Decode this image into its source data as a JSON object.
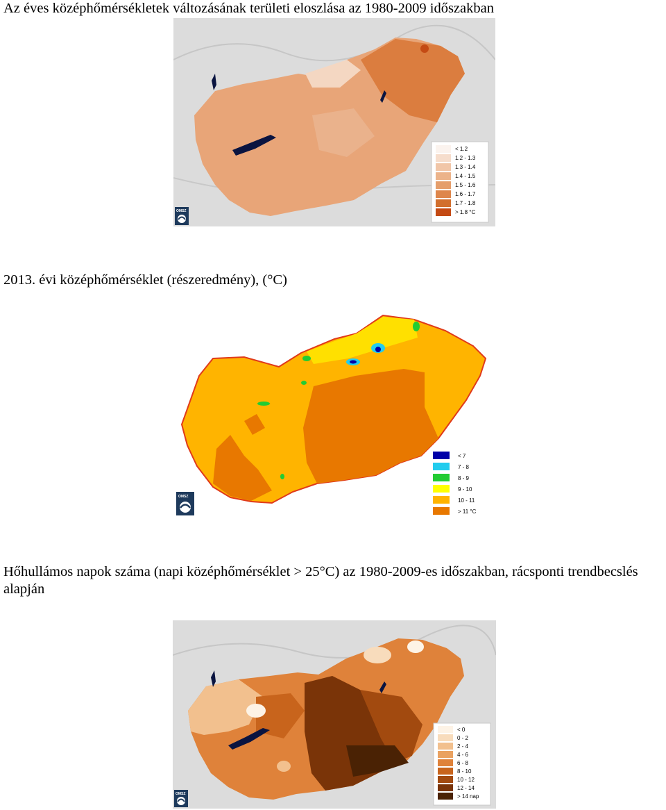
{
  "sections": [
    {
      "caption": "Az éves középhőmérsékletek változásának területi eloszlása az 1980-2009 időszakban",
      "legend": [
        {
          "label": "< 1.2",
          "color": "#fbf3ee"
        },
        {
          "label": "1.2 - 1.3",
          "color": "#f6ddcc"
        },
        {
          "label": "1.3 - 1.4",
          "color": "#f1c6a8"
        },
        {
          "label": "1.4 - 1.5",
          "color": "#ecb38a"
        },
        {
          "label": "1.5 - 1.6",
          "color": "#e59e6b"
        },
        {
          "label": "1.6 - 1.7",
          "color": "#de864b"
        },
        {
          "label": "1.7 - 1.8",
          "color": "#d26f2e"
        },
        {
          "label": "> 1.8 °C",
          "color": "#c44a14"
        }
      ],
      "logo": "OMSZ"
    },
    {
      "caption": "2013. évi középhőmérséklet (részeredmény), (°C)",
      "legend": [
        {
          "label": "< 7",
          "color": "#0000a8"
        },
        {
          "label": "7 - 8",
          "color": "#22ccee"
        },
        {
          "label": "8 - 9",
          "color": "#22cc33"
        },
        {
          "label": "9 - 10",
          "color": "#ffff00"
        },
        {
          "label": "10 - 11",
          "color": "#ffb400"
        },
        {
          "label": "> 11 °C",
          "color": "#e87800"
        }
      ],
      "logo": "OMSZ"
    },
    {
      "caption": "Hőhullámos napok száma (napi középhőmérséklet > 25°C) az 1980-2009-es időszakban, rácsponti trendbecslés alapján",
      "legend": [
        {
          "label": "< 0",
          "color": "#fdf3e6"
        },
        {
          "label": "0 - 2",
          "color": "#f8dcbc"
        },
        {
          "label": "2 - 4",
          "color": "#f2c08e"
        },
        {
          "label": "4 - 6",
          "color": "#eaa261"
        },
        {
          "label": "6 - 8",
          "color": "#df823a"
        },
        {
          "label": "8 - 10",
          "color": "#c8641c"
        },
        {
          "label": "10 - 12",
          "color": "#a24a0f"
        },
        {
          "label": "12 - 14",
          "color": "#7a3408"
        },
        {
          "label": "> 14 nap",
          "color": "#4a2204"
        }
      ],
      "logo": "OMSZ"
    }
  ]
}
